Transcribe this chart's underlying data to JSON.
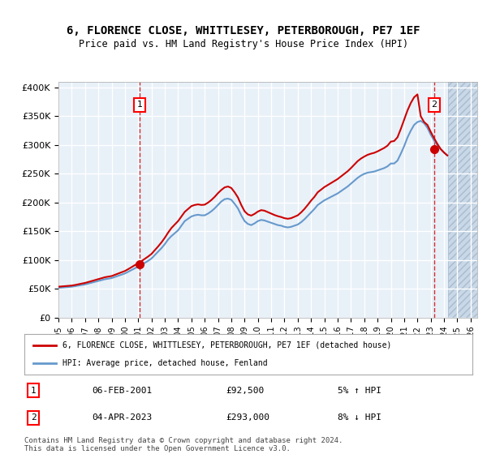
{
  "title": "6, FLORENCE CLOSE, WHITTLESEY, PETERBOROUGH, PE7 1EF",
  "subtitle": "Price paid vs. HM Land Registry's House Price Index (HPI)",
  "ylabel_ticks": [
    "£0",
    "£50K",
    "£100K",
    "£150K",
    "£200K",
    "£250K",
    "£300K",
    "£350K",
    "£400K"
  ],
  "ytick_values": [
    0,
    50000,
    100000,
    150000,
    200000,
    250000,
    300000,
    350000,
    400000
  ],
  "ylim": [
    0,
    410000
  ],
  "xlim_start": 1995.0,
  "xlim_end": 2026.5,
  "background_color": "#ffffff",
  "plot_bg_color": "#e8f0f8",
  "grid_color": "#ffffff",
  "hatch_color": "#c8d8e8",
  "red_line_color": "#cc0000",
  "blue_line_color": "#6699cc",
  "marker1_date": 2001.1,
  "marker1_value": 92500,
  "marker2_date": 2023.25,
  "marker2_value": 293000,
  "legend_label1": "6, FLORENCE CLOSE, WHITTLESEY, PETERBOROUGH, PE7 1EF (detached house)",
  "legend_label2": "HPI: Average price, detached house, Fenland",
  "annotation1_label": "1",
  "annotation2_label": "2",
  "table_row1": [
    "1",
    "06-FEB-2001",
    "£92,500",
    "5% ↑ HPI"
  ],
  "table_row2": [
    "2",
    "04-APR-2023",
    "£293,000",
    "8% ↓ HPI"
  ],
  "footer": "Contains HM Land Registry data © Crown copyright and database right 2024.\nThis data is licensed under the Open Government Licence v3.0.",
  "hpi_years": [
    1995,
    1995.25,
    1995.5,
    1995.75,
    1996,
    1996.25,
    1996.5,
    1996.75,
    1997,
    1997.25,
    1997.5,
    1997.75,
    1998,
    1998.25,
    1998.5,
    1998.75,
    1999,
    1999.25,
    1999.5,
    1999.75,
    2000,
    2000.25,
    2000.5,
    2000.75,
    2001,
    2001.25,
    2001.5,
    2001.75,
    2002,
    2002.25,
    2002.5,
    2002.75,
    2003,
    2003.25,
    2003.5,
    2003.75,
    2004,
    2004.25,
    2004.5,
    2004.75,
    2005,
    2005.25,
    2005.5,
    2005.75,
    2006,
    2006.25,
    2006.5,
    2006.75,
    2007,
    2007.25,
    2007.5,
    2007.75,
    2008,
    2008.25,
    2008.5,
    2008.75,
    2009,
    2009.25,
    2009.5,
    2009.75,
    2010,
    2010.25,
    2010.5,
    2010.75,
    2011,
    2011.25,
    2011.5,
    2011.75,
    2012,
    2012.25,
    2012.5,
    2012.75,
    2013,
    2013.25,
    2013.5,
    2013.75,
    2014,
    2014.25,
    2014.5,
    2014.75,
    2015,
    2015.25,
    2015.5,
    2015.75,
    2016,
    2016.25,
    2016.5,
    2016.75,
    2017,
    2017.25,
    2017.5,
    2017.75,
    2018,
    2018.25,
    2018.5,
    2018.75,
    2019,
    2019.25,
    2019.5,
    2019.75,
    2020,
    2020.25,
    2020.5,
    2020.75,
    2021,
    2021.25,
    2021.5,
    2021.75,
    2022,
    2022.25,
    2022.5,
    2022.75,
    2023,
    2023.25,
    2023.5,
    2023.75,
    2024,
    2024.25
  ],
  "hpi_values": [
    52000,
    52500,
    53000,
    53500,
    54000,
    55000,
    56000,
    57000,
    58000,
    59500,
    61000,
    62500,
    64000,
    65500,
    67000,
    68000,
    69000,
    71000,
    73000,
    75000,
    77000,
    80000,
    83000,
    86000,
    89000,
    92000,
    95500,
    99000,
    103000,
    109000,
    115000,
    121000,
    128000,
    136000,
    142000,
    147000,
    152000,
    160000,
    168000,
    172000,
    176000,
    178000,
    179000,
    178000,
    178000,
    181000,
    185000,
    190000,
    196000,
    202000,
    206000,
    207000,
    205000,
    198000,
    190000,
    178000,
    168000,
    163000,
    161000,
    164000,
    168000,
    170000,
    169000,
    167000,
    165000,
    163000,
    161000,
    160000,
    158000,
    157000,
    158000,
    160000,
    162000,
    166000,
    171000,
    177000,
    183000,
    189000,
    196000,
    200000,
    204000,
    207000,
    210000,
    213000,
    216000,
    220000,
    224000,
    228000,
    233000,
    238000,
    243000,
    247000,
    250000,
    252000,
    253000,
    254000,
    256000,
    258000,
    260000,
    263000,
    268000,
    268000,
    273000,
    285000,
    298000,
    313000,
    325000,
    335000,
    340000,
    342000,
    338000,
    330000,
    318000,
    308000,
    300000,
    293000,
    287000,
    282000
  ],
  "red_years": [
    1995,
    1995.25,
    1995.5,
    1995.75,
    1996,
    1996.25,
    1996.5,
    1996.75,
    1997,
    1997.25,
    1997.5,
    1997.75,
    1998,
    1998.25,
    1998.5,
    1998.75,
    1999,
    1999.25,
    1999.5,
    1999.75,
    2000,
    2000.25,
    2000.5,
    2000.75,
    2001,
    2001.25,
    2001.5,
    2001.75,
    2002,
    2002.25,
    2002.5,
    2002.75,
    2003,
    2003.25,
    2003.5,
    2003.75,
    2004,
    2004.25,
    2004.5,
    2004.75,
    2005,
    2005.25,
    2005.5,
    2005.75,
    2006,
    2006.25,
    2006.5,
    2006.75,
    2007,
    2007.25,
    2007.5,
    2007.75,
    2008,
    2008.25,
    2008.5,
    2008.75,
    2009,
    2009.25,
    2009.5,
    2009.75,
    2010,
    2010.25,
    2010.5,
    2010.75,
    2011,
    2011.25,
    2011.5,
    2011.75,
    2012,
    2012.25,
    2012.5,
    2012.75,
    2013,
    2013.25,
    2013.5,
    2013.75,
    2014,
    2014.25,
    2014.5,
    2014.75,
    2015,
    2015.25,
    2015.5,
    2015.75,
    2016,
    2016.25,
    2016.5,
    2016.75,
    2017,
    2017.25,
    2017.5,
    2017.75,
    2018,
    2018.25,
    2018.5,
    2018.75,
    2019,
    2019.25,
    2019.5,
    2019.75,
    2020,
    2020.25,
    2020.5,
    2020.75,
    2021,
    2021.25,
    2021.5,
    2021.75,
    2022,
    2022.25,
    2022.5,
    2022.75,
    2023,
    2023.25,
    2023.5,
    2023.75,
    2024,
    2024.25
  ],
  "red_values": [
    54000,
    54500,
    55000,
    55500,
    56000,
    57000,
    58200,
    59400,
    60600,
    62200,
    63800,
    65500,
    67200,
    68800,
    70500,
    71500,
    72500,
    74700,
    76900,
    79100,
    81300,
    84500,
    88000,
    91500,
    95000,
    98500,
    102500,
    106500,
    111000,
    117500,
    124000,
    131000,
    139000,
    148000,
    156000,
    162000,
    168000,
    176000,
    184000,
    189000,
    194000,
    196000,
    197000,
    196000,
    196500,
    200000,
    204500,
    210000,
    216500,
    222000,
    226500,
    228000,
    225500,
    218000,
    209000,
    196000,
    185000,
    179500,
    177500,
    180500,
    184500,
    187000,
    186000,
    183500,
    181000,
    178500,
    176500,
    175000,
    173000,
    172000,
    173000,
    175500,
    178000,
    183000,
    189000,
    196000,
    203500,
    210000,
    218000,
    222500,
    227000,
    230500,
    234000,
    237500,
    241000,
    245500,
    250000,
    254500,
    260000,
    266000,
    272000,
    276500,
    280000,
    283000,
    285000,
    286500,
    289000,
    292000,
    295000,
    299000,
    306000,
    307000,
    313500,
    328000,
    344000,
    360000,
    373000,
    383000,
    388000,
    350000,
    340000,
    335000,
    323000,
    312000,
    302000,
    293000,
    287000,
    282000
  ]
}
